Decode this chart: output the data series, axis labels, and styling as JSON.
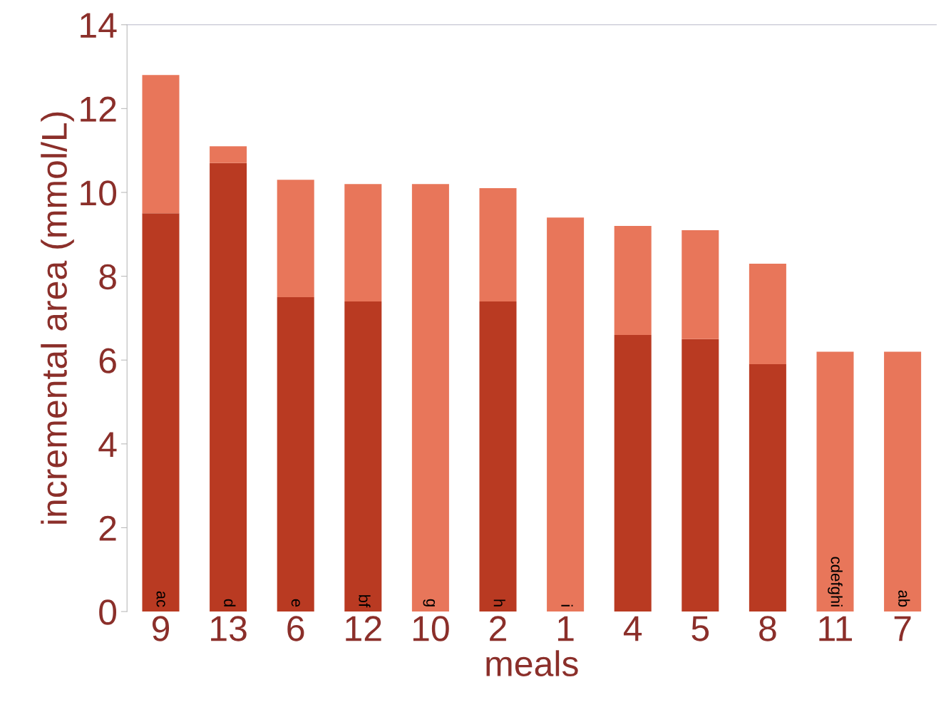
{
  "chart_data": {
    "type": "bar",
    "stacked": true,
    "xlabel": "meals",
    "ylabel": "incremental area (mmol/L)",
    "categories": [
      "9",
      "13",
      "6",
      "12",
      "10",
      "2",
      "1",
      "4",
      "5",
      "8",
      "11",
      "7"
    ],
    "series": [
      {
        "color": "#b93a22",
        "values": [
          9.5,
          10.7,
          7.5,
          7.4,
          null,
          7.4,
          null,
          6.6,
          6.5,
          5.9,
          null,
          null
        ],
        "value_labels": [
          "ac",
          "d",
          "e",
          "bf",
          null,
          "h",
          null,
          null,
          null,
          null,
          null,
          null
        ]
      },
      {
        "color": "#e8765a",
        "values": [
          3.3,
          0.4,
          2.8,
          2.8,
          10.2,
          2.7,
          9.4,
          2.6,
          2.6,
          2.4,
          6.2,
          6.2
        ],
        "value_labels": [
          null,
          null,
          null,
          null,
          "g",
          null,
          "i",
          null,
          null,
          null,
          "cdefghi",
          "ab"
        ]
      }
    ],
    "ylim": [
      0,
      14
    ],
    "yticks": [
      0,
      2,
      4,
      6,
      8,
      10,
      12,
      14
    ],
    "grid": false
  }
}
